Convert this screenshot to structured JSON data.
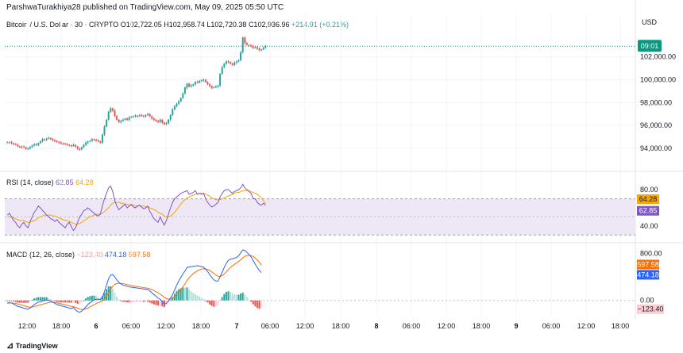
{
  "header": {
    "publisher_line": "ParshwaTurakhiya28 published on TradingView.com, May 09, 2025 05:50 UTC"
  },
  "symbol": {
    "name": "Bitcoin / U.S. Dollar · 30 · CRYPTO",
    "open": "O102,722.05",
    "high": "H102,958.74",
    "low": "L102,720.38",
    "close": "C102,936.96",
    "change": "+214.91 (+0.21%)"
  },
  "currency": "USD",
  "price_badge": {
    "time": "09:01",
    "color": "#089981"
  },
  "rsi": {
    "label": "RSI (14, close)",
    "value": "62.85",
    "ma_value": "64.28",
    "line_color": "#7e57c2",
    "ma_color": "#f7a600",
    "band_color": "#ede7f6"
  },
  "macd": {
    "label": "MACD (12, 26, close)",
    "hist_value": "−123.40",
    "macd_value": "474.18",
    "signal_value": "597.58",
    "macd_color": "#2962ff",
    "signal_color": "#ff6d00"
  },
  "footer": {
    "brand": "TradingView"
  },
  "colors": {
    "up": "#26a69a",
    "down": "#ef5350",
    "grid": "#f0f3fa"
  },
  "chart_data": [
    {
      "type": "candlestick",
      "title": "Bitcoin / U.S. Dollar · 30 · CRYPTO",
      "x_tick_labels": [
        "12:00",
        "18:00",
        "6",
        "06:00",
        "12:00",
        "18:00",
        "7",
        "06:00",
        "12:00",
        "18:00",
        "8",
        "06:00",
        "12:00",
        "18:00",
        "9",
        "06:00",
        "12:00",
        "18:00"
      ],
      "y_ticks": [
        94000,
        96000,
        98000,
        100000,
        102000
      ],
      "y_tick_labels": [
        "94,000.00",
        "96,000.00",
        "98,000.00",
        "100,000.00",
        "102,000.00"
      ],
      "ylim": [
        92400,
        104200
      ],
      "last_price": 102937,
      "close_series": [
        94500,
        94520,
        94460,
        94380,
        94300,
        94180,
        94100,
        94150,
        94080,
        93950,
        94000,
        94100,
        94250,
        94350,
        94300,
        94450,
        94600,
        94800,
        94750,
        94850,
        94900,
        94800,
        94700,
        94650,
        94550,
        94500,
        94450,
        94400,
        94350,
        94300,
        94250,
        94200,
        94300,
        94150,
        93950,
        93900,
        94100,
        94300,
        94500,
        94600,
        94650,
        94800,
        94750,
        94700,
        94600,
        94500,
        95200,
        95900,
        96500,
        97200,
        97500,
        97300,
        96800,
        96500,
        96300,
        96400,
        96500,
        96600,
        96500,
        96700,
        96750,
        96800,
        96850,
        96800,
        96900,
        96850,
        96800,
        96900,
        97000,
        96800,
        96600,
        96500,
        96400,
        96300,
        96500,
        96250,
        96100,
        96200,
        96500,
        96900,
        97400,
        97700,
        97900,
        98100,
        98400,
        98800,
        99300,
        99650,
        99400,
        99500,
        99600,
        99800,
        99750,
        99900,
        99950,
        100000,
        99800,
        99600,
        99450,
        99300,
        99350,
        99400,
        99500,
        100500,
        101100,
        101400,
        101600,
        101550,
        101400,
        101300,
        101500,
        101600,
        101700,
        102400,
        103700,
        103200,
        103050,
        103000,
        102950,
        102800,
        102850,
        102700,
        102600,
        102650,
        102800,
        102937
      ],
      "grid": true
    },
    {
      "type": "line",
      "title": "RSI (14, close)",
      "series": [
        {
          "name": "RSI",
          "values": [
            52,
            54,
            50,
            46,
            44,
            40,
            38,
            42,
            44,
            40,
            38,
            45,
            50,
            55,
            58,
            62,
            60,
            57,
            55,
            52,
            50,
            48,
            47,
            45,
            47,
            44,
            42,
            40,
            38,
            42,
            44,
            39,
            35,
            38,
            44,
            50,
            53,
            57,
            58,
            60,
            58,
            56,
            54,
            52,
            51,
            53,
            62,
            70,
            76,
            82,
            84,
            78,
            68,
            62,
            58,
            60,
            62,
            64,
            60,
            62,
            64,
            61,
            60,
            62,
            63,
            61,
            59,
            60,
            62,
            56,
            52,
            48,
            46,
            44,
            50,
            45,
            41,
            46,
            53,
            60,
            66,
            70,
            72,
            74,
            76,
            77,
            78,
            79,
            75,
            76,
            77,
            79,
            75,
            76,
            75,
            76,
            70,
            66,
            63,
            61,
            62,
            64,
            66,
            72,
            76,
            79,
            80,
            80,
            78,
            76,
            78,
            79,
            80,
            82,
            86,
            82,
            80,
            78,
            76,
            70,
            70,
            66,
            64,
            63,
            65,
            62.85
          ]
        },
        {
          "name": "RSI-based MA",
          "values": [
            50,
            50,
            50,
            49,
            48,
            47,
            46,
            46,
            46,
            45,
            44,
            44,
            45,
            46,
            47,
            49,
            50,
            51,
            52,
            52,
            52,
            52,
            51,
            51,
            50,
            49,
            48,
            47,
            46,
            46,
            45,
            44,
            43,
            42,
            42,
            43,
            44,
            46,
            47,
            49,
            50,
            51,
            52,
            53,
            53,
            53,
            54,
            56,
            58,
            60,
            63,
            65,
            66,
            66,
            66,
            65,
            65,
            64,
            64,
            63,
            63,
            63,
            62,
            62,
            62,
            62,
            62,
            61,
            61,
            60,
            59,
            58,
            57,
            55,
            54,
            53,
            51,
            50,
            50,
            51,
            53,
            55,
            58,
            61,
            64,
            67,
            69,
            71,
            72,
            73,
            74,
            75,
            75,
            76,
            76,
            76,
            75,
            74,
            73,
            71,
            70,
            69,
            69,
            69,
            70,
            71,
            72,
            73,
            74,
            75,
            76,
            77,
            77,
            78,
            79,
            79,
            79,
            79,
            78,
            77,
            76,
            75,
            73,
            71,
            68,
            64.28
          ]
        }
      ],
      "y_tick_labels": [
        "80.00",
        "40.00"
      ],
      "ylim": [
        25,
        95
      ],
      "bands": [
        30,
        70
      ]
    },
    {
      "type": "line",
      "title": "MACD (12, 26, close)",
      "series": [
        {
          "name": "MACD",
          "values": [
            -50,
            -40,
            -45,
            -60,
            -80,
            -100,
            -110,
            -120,
            -130,
            -140,
            -150,
            -130,
            -100,
            -70,
            -50,
            -30,
            -20,
            -10,
            0,
            10,
            0,
            -10,
            -30,
            -50,
            -70,
            -80,
            -90,
            -100,
            -110,
            -120,
            -130,
            -140,
            -120,
            -160,
            -190,
            -200,
            -180,
            -150,
            -110,
            -70,
            -40,
            -10,
            10,
            20,
            20,
            15,
            60,
            150,
            260,
            370,
            430,
            440,
            400,
            350,
            310,
            280,
            260,
            250,
            240,
            230,
            225,
            220,
            215,
            210,
            205,
            200,
            195,
            190,
            185,
            160,
            130,
            100,
            70,
            40,
            20,
            -20,
            -60,
            -50,
            -10,
            40,
            100,
            180,
            260,
            330,
            390,
            450,
            500,
            560,
            570,
            575,
            580,
            585,
            590,
            585,
            575,
            565,
            530,
            490,
            440,
            390,
            350,
            330,
            330,
            400,
            480,
            560,
            630,
            680,
            700,
            710,
            720,
            730,
            760,
            810,
            860,
            850,
            820,
            780,
            740,
            680,
            620,
            560,
            510,
            474
          ]
        },
        {
          "name": "Signal",
          "values": [
            -40,
            -40,
            -42,
            -45,
            -52,
            -60,
            -70,
            -80,
            -90,
            -100,
            -110,
            -115,
            -112,
            -104,
            -95,
            -85,
            -75,
            -65,
            -55,
            -45,
            -36,
            -31,
            -31,
            -35,
            -42,
            -50,
            -58,
            -66,
            -75,
            -84,
            -93,
            -102,
            -106,
            -117,
            -131,
            -145,
            -152,
            -152,
            -144,
            -129,
            -111,
            -91,
            -71,
            -53,
            -38,
            -27,
            -10,
            22,
            70,
            130,
            190,
            240,
            272,
            288,
            292,
            290,
            284,
            277,
            270,
            262,
            255,
            248,
            241,
            235,
            229,
            223,
            218,
            212,
            207,
            197,
            184,
            167,
            148,
            127,
            106,
            81,
            53,
            32,
            24,
            27,
            42,
            66,
            100,
            140,
            184,
            232,
            283,
            339,
            384,
            423,
            454,
            481,
            504,
            520,
            531,
            538,
            536,
            527,
            509,
            485,
            458,
            432,
            411,
            408,
            423,
            450,
            486,
            525,
            560,
            590,
            616,
            639,
            663,
            692,
            726,
            751,
            765,
            768,
            763,
            746,
            721,
            689,
            653,
            597.58
          ]
        }
      ],
      "histogram": [
        -10,
        0,
        -3,
        -15,
        -28,
        -40,
        -40,
        -40,
        -40,
        -40,
        -40,
        -15,
        12,
        34,
        45,
        55,
        55,
        55,
        55,
        55,
        36,
        21,
        1,
        -15,
        -28,
        -30,
        -32,
        -34,
        -35,
        -36,
        -37,
        -38,
        -14,
        -43,
        -59,
        -55,
        -28,
        2,
        34,
        59,
        71,
        81,
        81,
        73,
        58,
        42,
        70,
        128,
        190,
        240,
        240,
        200,
        128,
        62,
        18,
        -10,
        -24,
        -27,
        -30,
        -32,
        -30,
        -28,
        -26,
        -25,
        -24,
        -23,
        -23,
        -22,
        -22,
        -37,
        -54,
        -67,
        -78,
        -87,
        -86,
        -101,
        -113,
        -82,
        -34,
        13,
        58,
        114,
        160,
        190,
        206,
        218,
        217,
        221,
        186,
        152,
        126,
        104,
        86,
        65,
        44,
        27,
        -6,
        -37,
        -69,
        -95,
        -108,
        -102,
        -81,
        -8,
        57,
        110,
        144,
        155,
        140,
        120,
        104,
        91,
        97,
        118,
        134,
        99,
        55,
        12,
        -23,
        -66,
        -101,
        -129,
        -143,
        -123.4
      ],
      "y_tick_labels": [
        "800.00",
        "0.00"
      ],
      "ylim": [
        -260,
        900
      ]
    }
  ]
}
